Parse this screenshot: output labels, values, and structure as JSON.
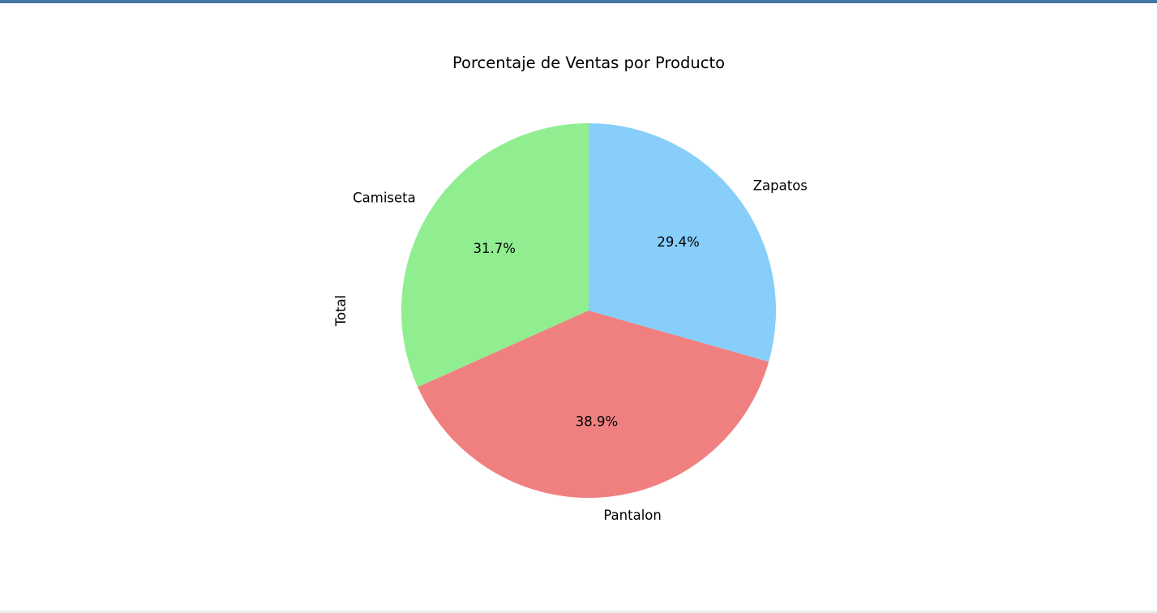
{
  "chart_data": {
    "type": "pie",
    "title": "Porcentaje de Ventas por Producto",
    "ylabel": "Total",
    "start_angle_deg": 90,
    "direction": "counterclockwise",
    "slices": [
      {
        "label": "Camiseta",
        "value": 31.7,
        "pct_label": "31.7%",
        "color": "#90ee90"
      },
      {
        "label": "Pantalon",
        "value": 38.9,
        "pct_label": "38.9%",
        "color": "#f08080"
      },
      {
        "label": "Zapatos",
        "value": 29.4,
        "pct_label": "29.4%",
        "color": "#87cefa"
      }
    ]
  },
  "frame": {
    "top_bar_color": "#4577a4"
  }
}
